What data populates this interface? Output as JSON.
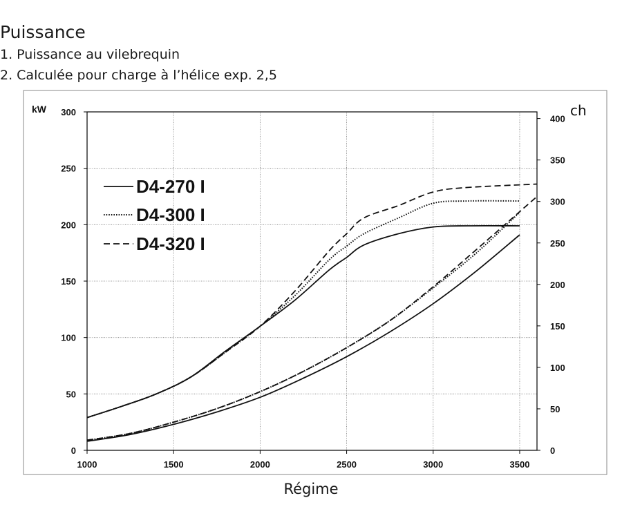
{
  "chart_data": {
    "type": "line",
    "title": "Puissance",
    "subtitle_lines": [
      "1. Puissance au vilebrequin",
      "2. Calculée pour charge à l’hélice exp. 2,5"
    ],
    "xlabel": "Régime",
    "ylabel_left": "kW",
    "ylabel_right": "ch",
    "xlim": [
      1000,
      3600
    ],
    "ylim_left": [
      0,
      300
    ],
    "ylim_right": [
      0,
      408
    ],
    "xticks": [
      1000,
      1500,
      2000,
      2500,
      3000,
      3500
    ],
    "yticks_left": [
      0,
      50,
      100,
      150,
      200,
      250,
      300
    ],
    "yticks_right": [
      0,
      50,
      100,
      150,
      200,
      250,
      300,
      350,
      400
    ],
    "grid": true,
    "legend_position": "top-left",
    "series": [
      {
        "name": "D4-270 I",
        "style": "solid",
        "crankshaft_power": {
          "x": [
            1000,
            1200,
            1400,
            1600,
            1800,
            2000,
            2200,
            2400,
            2500,
            2600,
            2800,
            3000,
            3200,
            3500
          ],
          "y": [
            29,
            39,
            50,
            65,
            88,
            110,
            133,
            160,
            171,
            182,
            192,
            198,
            199,
            199
          ]
        },
        "propeller_power": {
          "x": [
            1000,
            1250,
            1500,
            1750,
            2000,
            2250,
            2500,
            2750,
            3000,
            3250,
            3500
          ],
          "y": [
            8,
            14,
            23,
            34,
            47,
            64,
            83,
            105,
            130,
            159,
            191
          ]
        }
      },
      {
        "name": "D4-300 I",
        "style": "dotted",
        "crankshaft_power": {
          "x": [
            1000,
            1200,
            1400,
            1600,
            1800,
            2000,
            2200,
            2400,
            2500,
            2600,
            2800,
            3000,
            3200,
            3500
          ],
          "y": [
            29,
            39,
            50,
            65,
            87,
            110,
            137,
            169,
            181,
            192,
            206,
            219,
            221,
            221
          ]
        },
        "propeller_power": {
          "x": [
            1000,
            1250,
            1500,
            1750,
            2000,
            2250,
            2500,
            2750,
            3000,
            3250,
            3500
          ],
          "y": [
            9,
            15,
            25,
            37,
            52,
            70,
            91,
            115,
            144,
            175,
            211
          ]
        }
      },
      {
        "name": "D4-320 I",
        "style": "dashed",
        "crankshaft_power": {
          "x": [
            1000,
            1200,
            1400,
            1600,
            1800,
            2000,
            2200,
            2400,
            2500,
            2600,
            2800,
            3000,
            3200,
            3600
          ],
          "y": [
            29,
            39,
            50,
            65,
            87,
            110,
            141,
            177,
            192,
            206,
            217,
            229,
            233,
            236
          ]
        },
        "propeller_power": {
          "x": [
            1000,
            1250,
            1500,
            1750,
            2000,
            2250,
            2500,
            2750,
            3000,
            3250,
            3600
          ],
          "y": [
            9,
            15,
            25,
            37,
            52,
            70,
            91,
            115,
            145,
            178,
            225
          ]
        }
      }
    ]
  }
}
